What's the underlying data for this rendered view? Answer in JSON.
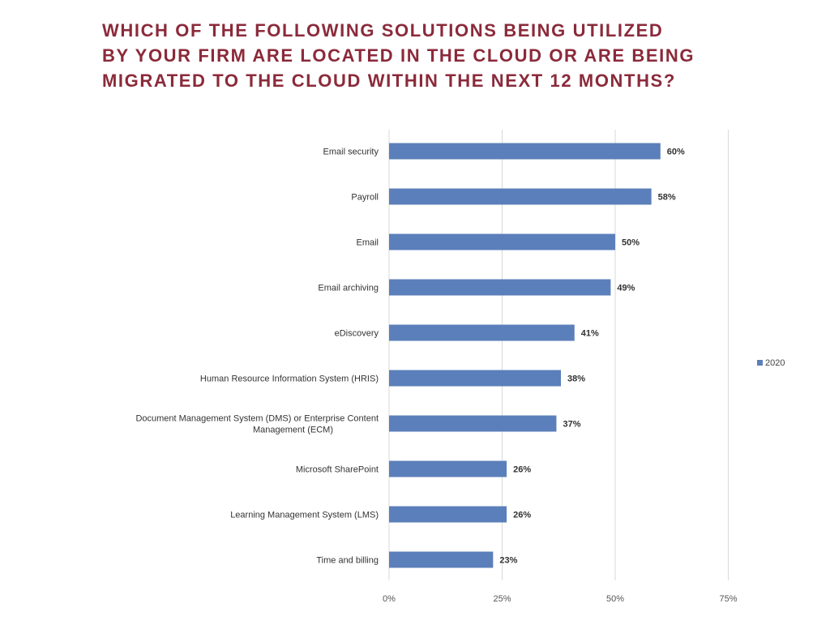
{
  "title": {
    "lines": [
      "WHICH OF THE FOLLOWING SOLUTIONS BEING UTILIZED",
      "BY YOUR FIRM ARE LOCATED IN THE CLOUD OR ARE BEING",
      "MIGRATED TO THE CLOUD WITHIN THE NEXT 12 MONTHS?"
    ]
  },
  "colors": {
    "title": "#8b2a3a",
    "bar": "#5b7fba",
    "gridline": "#d9d9d9"
  },
  "chart_data": {
    "type": "bar",
    "orientation": "horizontal",
    "categories": [
      "Email security",
      "Payroll",
      "Email",
      "Email archiving",
      "eDiscovery",
      "Human Resource Information System (HRIS)",
      [
        "Document Management System (DMS) or Enterprise Content",
        "Management (ECM)"
      ],
      "Microsoft SharePoint",
      "Learning Management System (LMS)",
      "Time and billing"
    ],
    "series": [
      {
        "name": "2020",
        "values": [
          60,
          58,
          50,
          49,
          41,
          38,
          37,
          26,
          26,
          23
        ],
        "labels": [
          "60%",
          "58%",
          "50%",
          "49%",
          "41%",
          "38%",
          "37%",
          "26%",
          "26%",
          "23%"
        ]
      }
    ],
    "xlim": [
      0,
      75
    ],
    "xticks": [
      0,
      25,
      50,
      75
    ],
    "xtick_labels": [
      "0%",
      "25%",
      "50%",
      "75%"
    ],
    "grid": true,
    "legend": "right"
  }
}
